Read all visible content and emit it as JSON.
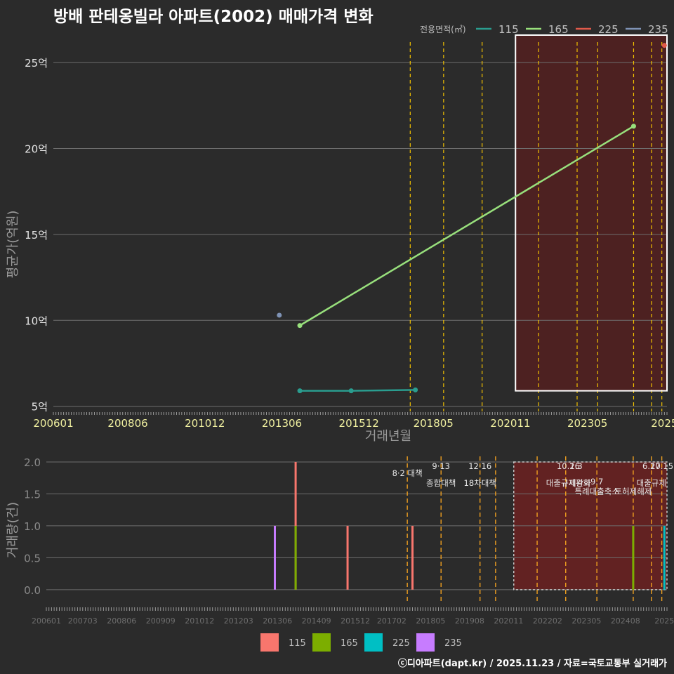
{
  "title": "방배 판테옹빌라 아파트(2002) 매매가격 변화",
  "footer": "ⓒ디아파트(dapt.kr) / 2025.11.23 / 자료=국토교통부 실거래가",
  "colors": {
    "background": "#2b2b2b",
    "grid": "#6e6e6e",
    "policy_line": "#f2c200",
    "policy_line_bottom": "#f0a020",
    "highlight_fill": "#5a1f1f",
    "s115": "#2a9d8f",
    "s165": "#98e07c",
    "s225": "#e05a4a",
    "s235": "#7f93b5",
    "bar115": "#f8766d",
    "bar165": "#7cae00",
    "bar225": "#00bfc4",
    "bar235": "#c77cff"
  },
  "chart_data": [
    {
      "type": "line",
      "title": "방배 판테옹빌라 아파트(2002) 매매가격 변화",
      "xlabel": "거래년월",
      "ylabel": "평균가(억원)",
      "x_range": [
        "2006-01",
        "2025-12"
      ],
      "ylim": [
        4.7,
        26.6
      ],
      "yticks": [
        5,
        10,
        15,
        20,
        25
      ],
      "ytick_labels": [
        "5억",
        "10억",
        "15억",
        "20억",
        "25억"
      ],
      "xticks": [
        "2006-01",
        "2008-06",
        "2010-12",
        "2013-06",
        "2015-12",
        "2018-05",
        "2020-11",
        "2023-05",
        "2025-11"
      ],
      "xtick_labels": [
        "200601",
        "200806",
        "201012",
        "201306",
        "201512",
        "201805",
        "202011",
        "202305",
        "2025"
      ],
      "legend_title": "전용면적(㎡)",
      "legend_position": "top-right",
      "series": [
        {
          "name": "115",
          "color_key": "s115",
          "points": [
            [
              "2014-01",
              5.9
            ],
            [
              "2015-09",
              5.9
            ],
            [
              "2017-10",
              5.95
            ]
          ]
        },
        {
          "name": "165",
          "color_key": "s165",
          "points": [
            [
              "2014-01",
              9.7
            ],
            [
              "2024-11",
              21.3
            ]
          ]
        },
        {
          "name": "225",
          "color_key": "s225",
          "points": [
            [
              "2025-11",
              26.0
            ]
          ]
        },
        {
          "name": "235",
          "color_key": "s235",
          "points": [
            [
              "2013-05",
              10.3
            ]
          ]
        }
      ],
      "policy_dates": [
        "2017-08",
        "2018-09",
        "2019-12",
        "2021-10",
        "2023-01",
        "2023-09",
        "2024-11",
        "2025-06",
        "2025-10"
      ],
      "highlight": {
        "x_start": "2021-01",
        "x_end": "2025-12",
        "y_start": 5.9,
        "y_end": 26.6
      }
    },
    {
      "type": "bar",
      "ylabel": "거래량(건)",
      "x_range": [
        "2006-01",
        "2025-12"
      ],
      "ylim": [
        -0.2,
        2.0
      ],
      "yticks": [
        0,
        0.5,
        1.0,
        1.5,
        2.0
      ],
      "ytick_labels": [
        "0.0",
        "0.5",
        "1.0",
        "1.5",
        "2.0"
      ],
      "xticks": [
        "2006-01",
        "2007-03",
        "2008-06",
        "2009-09",
        "2010-12",
        "2012-03",
        "2013-06",
        "2014-09",
        "2015-12",
        "2017-02",
        "2018-05",
        "2019-08",
        "2020-11",
        "2022-02",
        "2023-05",
        "2024-08",
        "2025-11"
      ],
      "xtick_labels": [
        "200601",
        "200703",
        "200806",
        "200909",
        "201012",
        "201203",
        "201306",
        "201409",
        "201512",
        "201702",
        "201805",
        "201908",
        "202011",
        "202202",
        "202305",
        "202408",
        "2025"
      ],
      "legend_position": "bottom",
      "legend": [
        "115",
        "165",
        "225",
        "235"
      ],
      "bars": [
        {
          "month": "2013-05",
          "series": "235",
          "value": 1
        },
        {
          "month": "2014-01",
          "series": "115",
          "value": 2
        },
        {
          "month": "2014-01",
          "series": "165",
          "value": 1
        },
        {
          "month": "2015-09",
          "series": "115",
          "value": 1
        },
        {
          "month": "2017-10",
          "series": "115",
          "value": 1
        },
        {
          "month": "2024-11",
          "series": "165",
          "value": 1
        },
        {
          "month": "2025-11",
          "series": "225",
          "value": 1
        }
      ],
      "policy_dates": [
        "2017-08",
        "2018-09",
        "2019-12",
        "2020-06",
        "2021-10",
        "2022-09",
        "2023-09",
        "2024-11",
        "2025-06",
        "2025-10"
      ],
      "highlight": {
        "x_start": "2021-01",
        "x_end": "2025-12",
        "y_start": 0,
        "y_end": 2.0
      },
      "annotations": [
        {
          "date": "2017-08",
          "row": 1,
          "text": "8·2 대책"
        },
        {
          "date": "2018-09",
          "row": 0,
          "text": "9·13"
        },
        {
          "date": "2018-09",
          "row": 2,
          "text": "종합대책"
        },
        {
          "date": "2019-12",
          "row": 0,
          "text": "12·16"
        },
        {
          "date": "2019-12",
          "row": 2,
          "text": "18차대책"
        },
        {
          "date": "2022-10",
          "row": 0,
          "text": "10.26"
        },
        {
          "date": "2022-10",
          "row": 2,
          "text": "대출규제강화"
        },
        {
          "date": "2023-01",
          "row": 0,
          "text": "1.3"
        },
        {
          "date": "2023-01",
          "row": 2,
          "text": "규제완화"
        },
        {
          "date": "2023-09",
          "row": 3,
          "text": "9.7"
        },
        {
          "date": "2023-09",
          "row": 4,
          "text": "특례대출축소"
        },
        {
          "date": "2024-11",
          "row": 4,
          "text": "토허제해제"
        },
        {
          "date": "2025-06",
          "row": 0,
          "text": "6.27"
        },
        {
          "date": "2025-06",
          "row": 2,
          "text": "대출규제"
        },
        {
          "date": "2025-10",
          "row": 0,
          "text": "10.15"
        }
      ]
    }
  ]
}
